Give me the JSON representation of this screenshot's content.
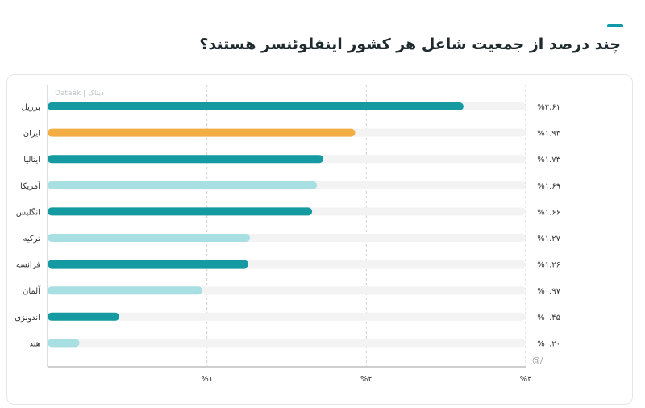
{
  "header": {
    "title": "چند درصد از جمعیت شاغل هر کشور اینفلوئنسر هستند؟",
    "accent_color": "#0e9aa7"
  },
  "watermark": {
    "source": "Dataak | دیتاک",
    "handle": "@/"
  },
  "colors": {
    "primary": "#149aa0",
    "light": "#a8dfe2",
    "highlight": "#f2ae43",
    "track": "#f3f3f3"
  },
  "chart_data": {
    "type": "bar",
    "orientation": "horizontal",
    "title": "چند درصد از جمعیت شاغل هر کشور اینفلوئنسر هستند؟",
    "categories": [
      "برزیل",
      "ایران",
      "ایتالیا",
      "آمریکا",
      "انگلیس",
      "ترکیه",
      "فرانسه",
      "آلمان",
      "اندونزی",
      "هند"
    ],
    "values": [
      2.61,
      1.93,
      1.73,
      1.69,
      1.66,
      1.27,
      1.26,
      0.97,
      0.45,
      0.2
    ],
    "value_labels": [
      "%۲.۶۱",
      "%۱.۹۳",
      "%۱.۷۳",
      "%۱.۶۹",
      "%۱.۶۶",
      "%۱.۲۷",
      "%۱.۲۶",
      "%۰.۹۷",
      "%۰.۴۵",
      "%۰.۲۰"
    ],
    "bar_styles": [
      "primary",
      "highlight",
      "primary",
      "light",
      "primary",
      "light",
      "primary",
      "light",
      "primary",
      "light"
    ],
    "xlim": [
      0,
      3
    ],
    "xticks": [
      1,
      2,
      3
    ],
    "xtick_labels": [
      "%۱",
      "%۲",
      "%۳"
    ],
    "grid": true,
    "xlabel": "",
    "ylabel": ""
  }
}
